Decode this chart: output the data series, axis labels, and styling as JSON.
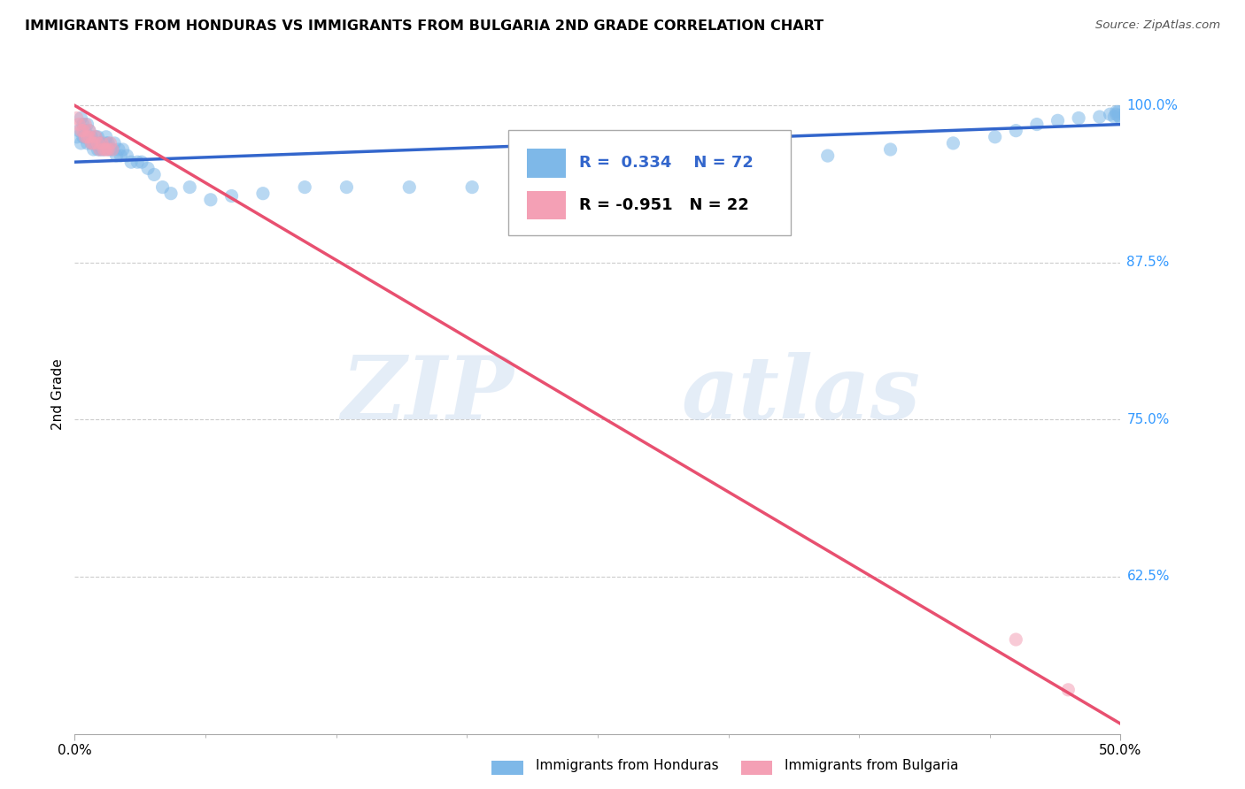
{
  "title": "IMMIGRANTS FROM HONDURAS VS IMMIGRANTS FROM BULGARIA 2ND GRADE CORRELATION CHART",
  "source": "Source: ZipAtlas.com",
  "ylabel": "2nd Grade",
  "xlim": [
    0.0,
    0.5
  ],
  "ylim": [
    0.5,
    1.04
  ],
  "ytick_labels": [
    "100.0%",
    "87.5%",
    "75.0%",
    "62.5%"
  ],
  "ytick_values": [
    1.0,
    0.875,
    0.75,
    0.625
  ],
  "xtick_labels": [
    "0.0%",
    "50.0%"
  ],
  "xtick_values": [
    0.0,
    0.5
  ],
  "legend_label1": "Immigrants from Honduras",
  "legend_label2": "Immigrants from Bulgaria",
  "r1": 0.334,
  "n1": 72,
  "r2": -0.951,
  "n2": 22,
  "color_honduras": "#7EB8E8",
  "color_bulgaria": "#F4A0B5",
  "line_color_honduras": "#3366CC",
  "line_color_bulgaria": "#E85070",
  "watermark_zip": "ZIP",
  "watermark_atlas": "atlas",
  "background_color": "#ffffff",
  "grid_color": "#cccccc",
  "honduras_x": [
    0.001,
    0.002,
    0.003,
    0.003,
    0.004,
    0.004,
    0.005,
    0.005,
    0.006,
    0.006,
    0.007,
    0.007,
    0.008,
    0.008,
    0.009,
    0.009,
    0.01,
    0.01,
    0.011,
    0.011,
    0.012,
    0.012,
    0.013,
    0.013,
    0.014,
    0.015,
    0.015,
    0.016,
    0.016,
    0.017,
    0.018,
    0.019,
    0.02,
    0.021,
    0.022,
    0.023,
    0.025,
    0.027,
    0.03,
    0.032,
    0.035,
    0.038,
    0.042,
    0.046,
    0.055,
    0.065,
    0.075,
    0.09,
    0.11,
    0.13,
    0.16,
    0.19,
    0.22,
    0.25,
    0.28,
    0.32,
    0.36,
    0.39,
    0.42,
    0.44,
    0.45,
    0.46,
    0.47,
    0.48,
    0.49,
    0.495,
    0.498,
    0.499,
    0.499,
    0.5,
    0.498,
    0.497
  ],
  "honduras_y": [
    0.975,
    0.98,
    0.97,
    0.99,
    0.975,
    0.985,
    0.975,
    0.98,
    0.97,
    0.985,
    0.975,
    0.98,
    0.97,
    0.975,
    0.965,
    0.97,
    0.97,
    0.975,
    0.965,
    0.975,
    0.965,
    0.97,
    0.965,
    0.97,
    0.965,
    0.97,
    0.975,
    0.965,
    0.97,
    0.965,
    0.965,
    0.97,
    0.96,
    0.965,
    0.96,
    0.965,
    0.96,
    0.955,
    0.955,
    0.955,
    0.95,
    0.945,
    0.935,
    0.93,
    0.935,
    0.925,
    0.928,
    0.93,
    0.935,
    0.935,
    0.935,
    0.935,
    0.94,
    0.94,
    0.945,
    0.95,
    0.96,
    0.965,
    0.97,
    0.975,
    0.98,
    0.985,
    0.988,
    0.99,
    0.991,
    0.993,
    0.995,
    0.995,
    0.992,
    0.99,
    0.993,
    0.991
  ],
  "bulgaria_x": [
    0.001,
    0.002,
    0.003,
    0.004,
    0.005,
    0.005,
    0.006,
    0.007,
    0.007,
    0.008,
    0.009,
    0.01,
    0.011,
    0.012,
    0.013,
    0.014,
    0.015,
    0.016,
    0.017,
    0.018,
    0.45,
    0.475
  ],
  "bulgaria_y": [
    0.99,
    0.985,
    0.98,
    0.98,
    0.975,
    0.985,
    0.975,
    0.975,
    0.98,
    0.97,
    0.97,
    0.975,
    0.97,
    0.965,
    0.97,
    0.965,
    0.965,
    0.965,
    0.97,
    0.965,
    0.575,
    0.535
  ],
  "honduras_line_x": [
    0.0,
    0.5
  ],
  "honduras_line_y": [
    0.955,
    0.985
  ],
  "bulgaria_line_x": [
    0.0,
    0.5
  ],
  "bulgaria_line_y": [
    1.0,
    0.508
  ]
}
